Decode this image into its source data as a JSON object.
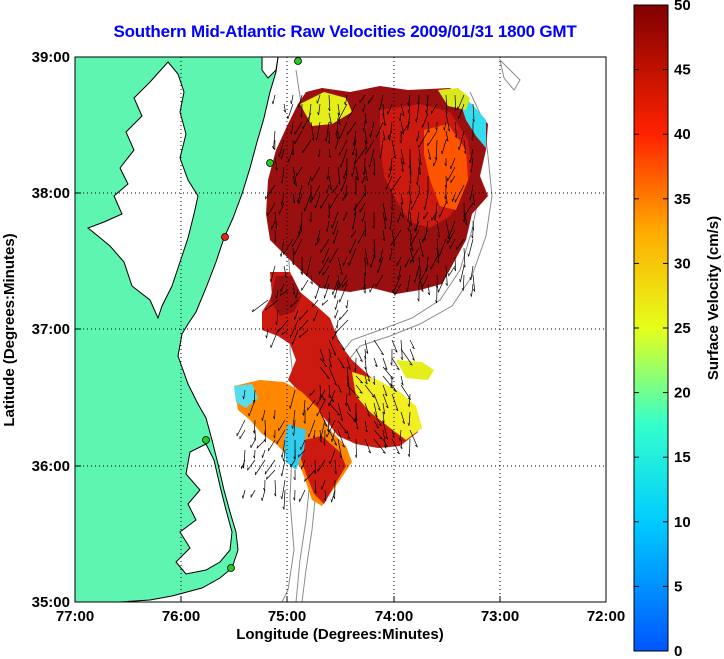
{
  "title": "Southern Mid-Atlantic Raw Velocities 2009/01/31 1800 GMT",
  "xlabel": "Longitude (Degrees:Minutes)",
  "ylabel": "Latitude (Degrees:Minutes)",
  "colorbar_label": "Surface Velocity (cm/s)",
  "chart_data": {
    "type": "heatmap",
    "x_ticks": [
      "77:00",
      "76:00",
      "75:00",
      "74:00",
      "73:00",
      "72:00"
    ],
    "y_ticks": [
      "39:00",
      "38:00",
      "37:00",
      "36:00",
      "35:00"
    ],
    "xlim": [
      -77,
      -72
    ],
    "ylim": [
      35,
      39
    ],
    "colorbar_ticks": [
      "50",
      "45",
      "40",
      "35",
      "30",
      "25",
      "20",
      "15",
      "10",
      "5",
      "0"
    ],
    "colorbar_range": [
      0,
      50
    ],
    "grid": true,
    "colors": {
      "land": "#5ef5b0",
      "coast": "#000000",
      "bathymetry": "#8c8c8c",
      "grid": "#000000",
      "station": "#22cc22",
      "station_alert": "#ee2211"
    }
  }
}
